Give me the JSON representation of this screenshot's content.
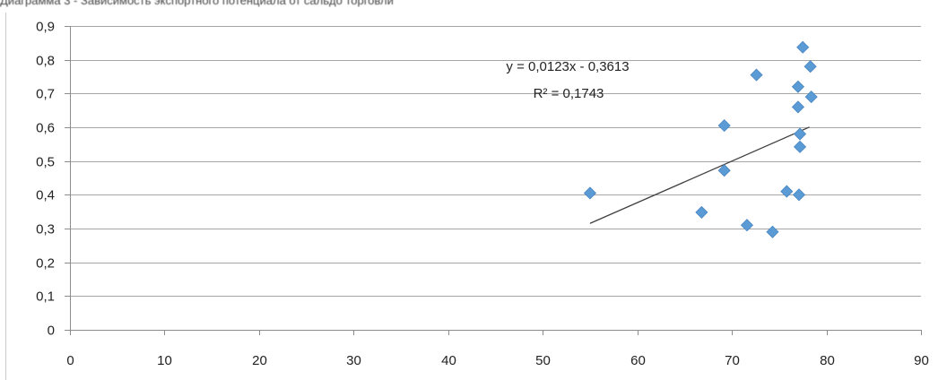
{
  "chart_data": {
    "type": "scatter",
    "title_partial": "Диаграмма 3 - Зависимость экспортного потенциала от сальдо торговли",
    "xlim": [
      0,
      90
    ],
    "ylim": [
      0,
      0.9
    ],
    "x_ticks": [
      "0",
      "10",
      "20",
      "30",
      "40",
      "50",
      "60",
      "70",
      "80",
      "90"
    ],
    "y_ticks": [
      "0",
      "0,1",
      "0,2",
      "0,3",
      "0,4",
      "0,5",
      "0,6",
      "0,7",
      "0,8",
      "0,9"
    ],
    "grid": "horizontal",
    "legend": "none",
    "series": [
      {
        "marker": "diamond",
        "color": "#5b9bd5",
        "points": [
          {
            "x": 55,
            "y": 0.405
          },
          {
            "x": 66.8,
            "y": 0.348
          },
          {
            "x": 69.2,
            "y": 0.605
          },
          {
            "x": 69.2,
            "y": 0.472
          },
          {
            "x": 71.6,
            "y": 0.31
          },
          {
            "x": 72.6,
            "y": 0.755
          },
          {
            "x": 74.3,
            "y": 0.29
          },
          {
            "x": 75.8,
            "y": 0.41
          },
          {
            "x": 77,
            "y": 0.72
          },
          {
            "x": 77,
            "y": 0.66
          },
          {
            "x": 77.1,
            "y": 0.4
          },
          {
            "x": 77.2,
            "y": 0.58
          },
          {
            "x": 77.2,
            "y": 0.542
          },
          {
            "x": 77.5,
            "y": 0.837
          },
          {
            "x": 78.3,
            "y": 0.78
          },
          {
            "x": 78.4,
            "y": 0.69
          }
        ]
      }
    ],
    "trendline": {
      "type": "linear",
      "color": "#404040",
      "x_start": 55,
      "x_end": 78.2,
      "equation": "y = 0,0123x - 0,3613",
      "r_squared_label": "R² = 0,1743"
    }
  }
}
